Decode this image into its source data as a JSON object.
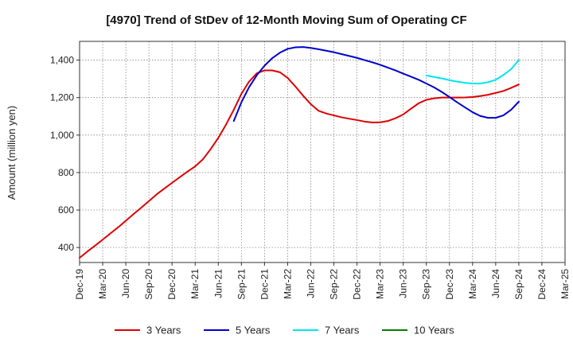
{
  "chart_data": {
    "type": "line",
    "title": "[4970]  Trend of StDev of 12-Month Moving Sum of Operating CF",
    "xlabel": "",
    "ylabel": "Amount (million yen)",
    "ylim": [
      320,
      1500
    ],
    "yticks": [
      400,
      600,
      800,
      1000,
      1200,
      1400
    ],
    "ytick_labels": [
      "400",
      "600",
      "800",
      "1,000",
      "1,200",
      "1,400"
    ],
    "x_categories": [
      "Dec-19",
      "Mar-20",
      "Jun-20",
      "Sep-20",
      "Dec-20",
      "Mar-21",
      "Jun-21",
      "Sep-21",
      "Dec-21",
      "Mar-22",
      "Jun-22",
      "Sep-22",
      "Dec-22",
      "Mar-23",
      "Jun-23",
      "Sep-23",
      "Dec-23",
      "Mar-24",
      "Jun-24",
      "Sep-24",
      "Dec-24",
      "Mar-25"
    ],
    "x_tick_labels": [
      "Dec-19",
      "Mar-20",
      "Jun-20",
      "Sep-20",
      "Dec-20",
      "Mar-21",
      "Jun-21",
      "Sep-21",
      "Dec-21",
      "Mar-22",
      "Jun-22",
      "Sep-22",
      "Dec-22",
      "Mar-23",
      "Jun-23",
      "Sep-23",
      "Dec-23",
      "Mar-24",
      "Jun-24",
      "Sep-24",
      "Dec-24",
      "Mar-25"
    ],
    "grid": true,
    "legend_position": "bottom",
    "series": [
      {
        "name": "3 Years",
        "color": "#dd0000",
        "x": [
          0,
          0.33,
          0.67,
          1,
          1.33,
          1.67,
          2,
          2.33,
          2.67,
          3,
          3.33,
          3.67,
          4,
          4.33,
          4.67,
          5,
          5.33,
          5.67,
          6,
          6.33,
          6.67,
          7,
          7.33,
          7.67,
          8,
          8.33,
          8.67,
          9,
          9.33,
          9.67,
          10,
          10.33,
          10.67,
          11,
          11.33,
          11.67,
          12,
          12.33,
          12.67,
          13,
          13.33,
          13.67,
          14,
          14.33,
          14.67,
          15,
          15.33,
          15.67,
          16,
          16.33,
          16.67,
          17,
          17.33,
          17.67,
          18,
          18.33,
          18.67,
          19
        ],
        "values": [
          345,
          378,
          410,
          442,
          475,
          508,
          543,
          578,
          613,
          648,
          683,
          715,
          745,
          775,
          805,
          833,
          870,
          925,
          985,
          1055,
          1135,
          1220,
          1285,
          1330,
          1345,
          1345,
          1335,
          1305,
          1260,
          1210,
          1165,
          1130,
          1115,
          1105,
          1095,
          1087,
          1080,
          1072,
          1067,
          1068,
          1075,
          1090,
          1110,
          1140,
          1170,
          1188,
          1196,
          1200,
          1200,
          1200,
          1201,
          1203,
          1208,
          1215,
          1225,
          1235,
          1252,
          1270
        ]
      },
      {
        "name": "5 Years",
        "color": "#0000cc",
        "x": [
          6.67,
          7,
          7.33,
          7.67,
          8,
          8.33,
          8.67,
          9,
          9.33,
          9.67,
          10,
          10.33,
          10.67,
          11,
          11.33,
          11.67,
          12,
          12.33,
          12.67,
          13,
          13.33,
          13.67,
          14,
          14.33,
          14.67,
          15,
          15.33,
          15.67,
          16,
          16.33,
          16.67,
          17,
          17.33,
          17.67,
          18,
          18.33,
          18.67,
          19
        ],
        "values": [
          1075,
          1175,
          1255,
          1320,
          1370,
          1410,
          1440,
          1460,
          1468,
          1470,
          1465,
          1458,
          1450,
          1442,
          1432,
          1422,
          1412,
          1400,
          1388,
          1375,
          1360,
          1345,
          1328,
          1312,
          1295,
          1275,
          1255,
          1230,
          1203,
          1175,
          1148,
          1122,
          1102,
          1092,
          1092,
          1105,
          1135,
          1178
        ]
      },
      {
        "name": "7 Years",
        "color": "#00e5ee",
        "x": [
          15,
          15.33,
          15.67,
          16,
          16.33,
          16.67,
          17,
          17.33,
          17.67,
          18,
          18.33,
          18.67,
          19
        ],
        "values": [
          1318,
          1310,
          1302,
          1293,
          1285,
          1279,
          1275,
          1275,
          1282,
          1295,
          1320,
          1352,
          1400
        ]
      },
      {
        "name": "10 Years",
        "color": "#008000",
        "x": [],
        "values": []
      }
    ]
  }
}
